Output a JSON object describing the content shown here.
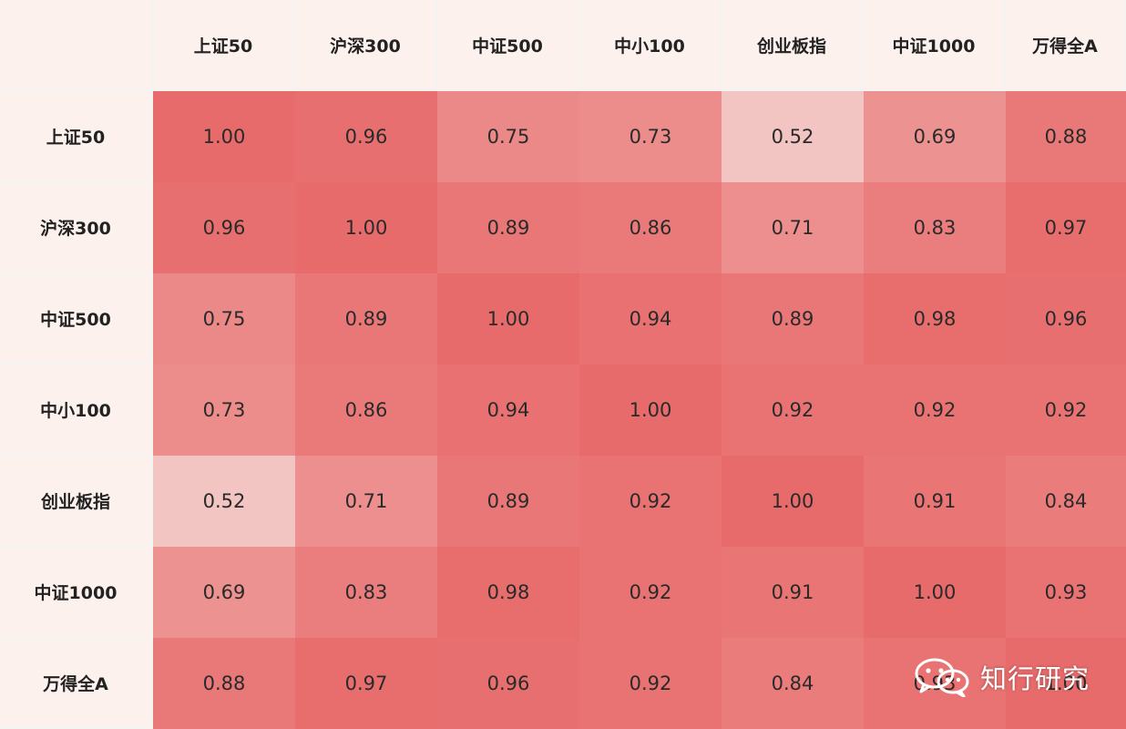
{
  "chart_data": {
    "type": "heatmap",
    "x_labels": [
      "上证50",
      "沪深300",
      "中证500",
      "中小100",
      "创业板指",
      "中证1000",
      "万得全A"
    ],
    "y_labels": [
      "上证50",
      "沪深300",
      "中证500",
      "中小100",
      "创业板指",
      "中证1000",
      "万得全A"
    ],
    "values": [
      [
        1.0,
        0.96,
        0.75,
        0.73,
        0.52,
        0.69,
        0.88
      ],
      [
        0.96,
        1.0,
        0.89,
        0.86,
        0.71,
        0.83,
        0.97
      ],
      [
        0.75,
        0.89,
        1.0,
        0.94,
        0.89,
        0.98,
        0.96
      ],
      [
        0.73,
        0.86,
        0.94,
        1.0,
        0.92,
        0.92,
        0.92
      ],
      [
        0.52,
        0.71,
        0.89,
        0.92,
        1.0,
        0.91,
        0.84
      ],
      [
        0.69,
        0.83,
        0.98,
        0.92,
        0.91,
        1.0,
        0.93
      ],
      [
        0.88,
        0.97,
        0.96,
        0.92,
        0.84,
        0.93,
        1.0
      ]
    ],
    "colors": {
      "high": "#e86b6b",
      "low": "#f2c4c2",
      "header_bg": "#fcf1ed"
    }
  },
  "watermark": {
    "text": "知行研究",
    "icon": "wechat-icon"
  }
}
